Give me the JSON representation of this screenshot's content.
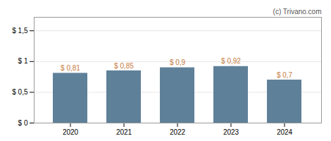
{
  "chart_data": {
    "type": "bar",
    "categories": [
      "2020",
      "2021",
      "2022",
      "2023",
      "2024"
    ],
    "values": [
      0.81,
      0.85,
      0.9,
      0.92,
      0.7
    ],
    "value_labels": [
      "$ 0,81",
      "$ 0,85",
      "$ 0,9",
      "$ 0,92",
      "$ 0,7"
    ],
    "data_labels": true,
    "color": "#5f8099",
    "ylim": [
      0,
      1.72
    ],
    "yticks": [
      {
        "value": 0,
        "label": "$ 0"
      },
      {
        "value": 0.5,
        "label": "$ 0,5"
      },
      {
        "value": 1.0,
        "label": "$ 1"
      },
      {
        "value": 1.5,
        "label": "$ 1,5"
      }
    ],
    "grid": true,
    "annotations": [
      "(c) Trivano.com"
    ]
  }
}
